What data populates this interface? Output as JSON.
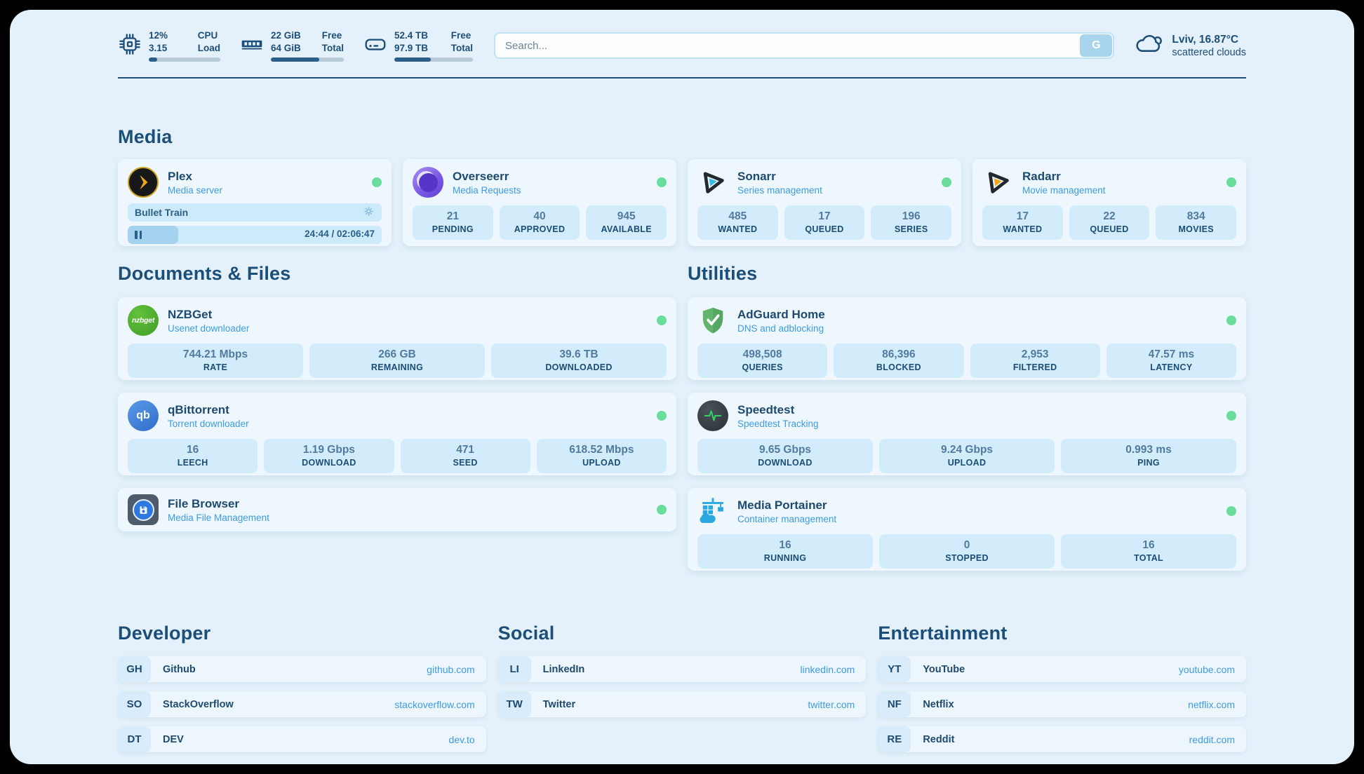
{
  "topbar": {
    "cpu": {
      "values": [
        "12%",
        "3.15"
      ],
      "labels": [
        "CPU",
        "Load"
      ],
      "percent": 12
    },
    "memory": {
      "values": [
        "22 GiB",
        "64 GiB"
      ],
      "labels": [
        "Free",
        "Total"
      ],
      "percent": 66
    },
    "disk": {
      "values": [
        "52.4 TB",
        "97.9 TB"
      ],
      "labels": [
        "Free",
        "Total"
      ],
      "percent": 46
    },
    "search": {
      "placeholder": "Search...",
      "button_label": "G"
    },
    "weather": {
      "location": "Lviv, 16.87°C",
      "condition": "scattered clouds"
    }
  },
  "media": {
    "title": "Media",
    "plex": {
      "title": "Plex",
      "subtitle": "Media server",
      "now_playing": "Bullet Train",
      "time": "24:44 / 02:06:47",
      "progress_percent": 20
    },
    "overseerr": {
      "title": "Overseerr",
      "subtitle": "Media Requests",
      "stats": [
        {
          "value": "21",
          "label": "PENDING"
        },
        {
          "value": "40",
          "label": "APPROVED"
        },
        {
          "value": "945",
          "label": "AVAILABLE"
        }
      ]
    },
    "sonarr": {
      "title": "Sonarr",
      "subtitle": "Series management",
      "stats": [
        {
          "value": "485",
          "label": "WANTED"
        },
        {
          "value": "17",
          "label": "QUEUED"
        },
        {
          "value": "196",
          "label": "SERIES"
        }
      ]
    },
    "radarr": {
      "title": "Radarr",
      "subtitle": "Movie management",
      "stats": [
        {
          "value": "17",
          "label": "WANTED"
        },
        {
          "value": "22",
          "label": "QUEUED"
        },
        {
          "value": "834",
          "label": "MOVIES"
        }
      ]
    }
  },
  "documents": {
    "title": "Documents & Files",
    "nzbget": {
      "title": "NZBGet",
      "subtitle": "Usenet downloader",
      "icon_text": "nzbget",
      "stats": [
        {
          "value": "744.21 Mbps",
          "label": "RATE"
        },
        {
          "value": "266 GB",
          "label": "REMAINING"
        },
        {
          "value": "39.6 TB",
          "label": "DOWNLOADED"
        }
      ]
    },
    "qbittorrent": {
      "title": "qBittorrent",
      "subtitle": "Torrent downloader",
      "icon_text": "qb",
      "stats": [
        {
          "value": "16",
          "label": "LEECH"
        },
        {
          "value": "1.19 Gbps",
          "label": "DOWNLOAD"
        },
        {
          "value": "471",
          "label": "SEED"
        },
        {
          "value": "618.52 Mbps",
          "label": "UPLOAD"
        }
      ]
    },
    "filebrowser": {
      "title": "File Browser",
      "subtitle": "Media File Management"
    }
  },
  "utilities": {
    "title": "Utilities",
    "adguard": {
      "title": "AdGuard Home",
      "subtitle": "DNS and adblocking",
      "stats": [
        {
          "value": "498,508",
          "label": "QUERIES"
        },
        {
          "value": "86,396",
          "label": "BLOCKED"
        },
        {
          "value": "2,953",
          "label": "FILTERED"
        },
        {
          "value": "47.57 ms",
          "label": "LATENCY"
        }
      ]
    },
    "speedtest": {
      "title": "Speedtest",
      "subtitle": "Speedtest Tracking",
      "stats": [
        {
          "value": "9.65 Gbps",
          "label": "DOWNLOAD"
        },
        {
          "value": "9.24 Gbps",
          "label": "UPLOAD"
        },
        {
          "value": "0.993 ms",
          "label": "PING"
        }
      ]
    },
    "portainer": {
      "title": "Media Portainer",
      "subtitle": "Container management",
      "stats": [
        {
          "value": "16",
          "label": "RUNNING"
        },
        {
          "value": "0",
          "label": "STOPPED"
        },
        {
          "value": "16",
          "label": "TOTAL"
        }
      ]
    }
  },
  "bookmarks": {
    "developer": {
      "title": "Developer",
      "links": [
        {
          "abbr": "GH",
          "name": "Github",
          "url": "github.com"
        },
        {
          "abbr": "SO",
          "name": "StackOverflow",
          "url": "stackoverflow.com"
        },
        {
          "abbr": "DT",
          "name": "DEV",
          "url": "dev.to"
        }
      ]
    },
    "social": {
      "title": "Social",
      "links": [
        {
          "abbr": "LI",
          "name": "LinkedIn",
          "url": "linkedin.com"
        },
        {
          "abbr": "TW",
          "name": "Twitter",
          "url": "twitter.com"
        }
      ]
    },
    "entertainment": {
      "title": "Entertainment",
      "links": [
        {
          "abbr": "YT",
          "name": "YouTube",
          "url": "youtube.com"
        },
        {
          "abbr": "NF",
          "name": "Netflix",
          "url": "netflix.com"
        },
        {
          "abbr": "RE",
          "name": "Reddit",
          "url": "reddit.com"
        }
      ]
    }
  },
  "colors": {
    "accent": "#3d9ce2",
    "navy": "#1b4e79",
    "status_green": "#68dd9c"
  }
}
